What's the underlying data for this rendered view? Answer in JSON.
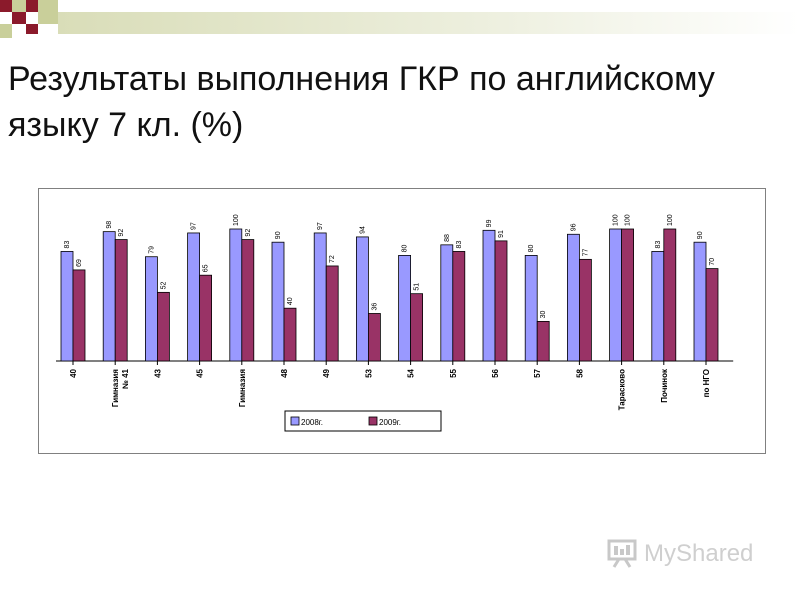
{
  "slide": {
    "title": "Результаты выполнения ГКР по английскому языку 7 кл. (%)"
  },
  "watermark": {
    "text": "MyShared",
    "icon": "presentation-board-icon"
  },
  "colors": {
    "series_2008": "#9999ff",
    "series_2009": "#993366",
    "deco_dark": "#8b1a2b",
    "deco_light": "#c9cf9a",
    "deco_band": "#e8ebd2"
  },
  "chart_data": {
    "type": "bar",
    "title": "",
    "xlabel": "",
    "ylabel": "",
    "ylim": [
      0,
      100
    ],
    "grid": false,
    "legend_position": "bottom",
    "categories": [
      "40",
      "Гимназия № 41",
      "43",
      "45",
      "Гимназия",
      "48",
      "49",
      "53",
      "54",
      "55",
      "56",
      "57",
      "58",
      "Тарасково",
      "Починок",
      "по НГО"
    ],
    "series": [
      {
        "name": "2008г.",
        "values": [
          83,
          98,
          79,
          97,
          100,
          90,
          97,
          94,
          80,
          88,
          99,
          80,
          96,
          100,
          83,
          90
        ]
      },
      {
        "name": "2009г.",
        "values": [
          69,
          92,
          52,
          65,
          92,
          40,
          72,
          36,
          51,
          83,
          91,
          30,
          77,
          100,
          100,
          70
        ]
      }
    ]
  }
}
